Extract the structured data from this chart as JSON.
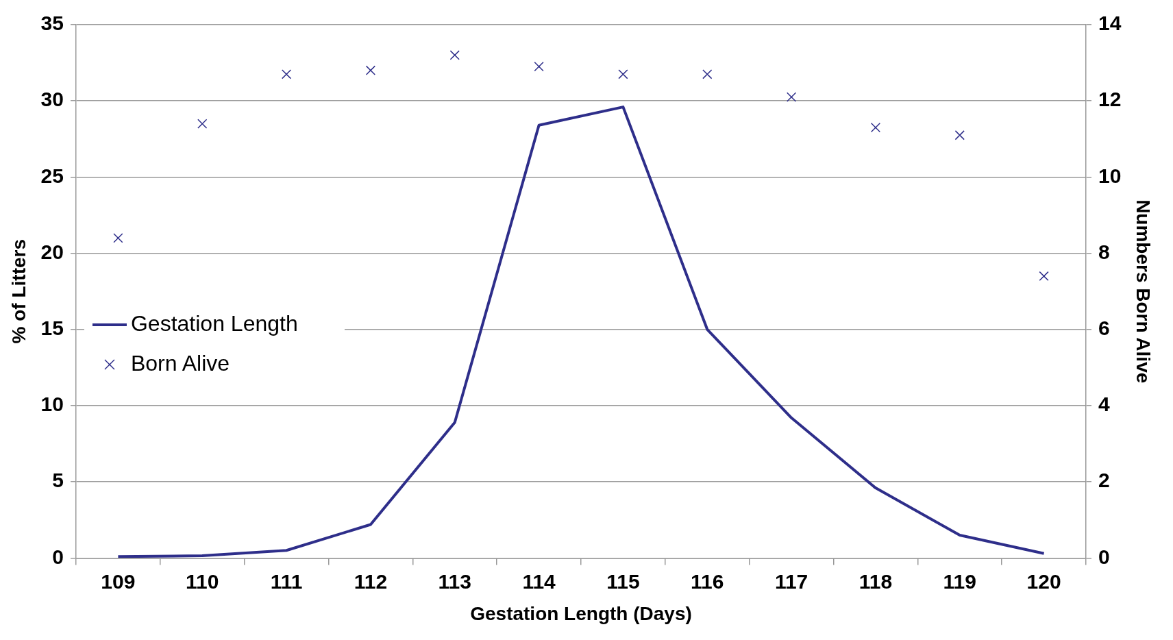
{
  "chart_data": {
    "type": "line",
    "xlabel": "Gestation Length (Days)",
    "ylabel": "% of Litters",
    "y2label": "Numbers Born Alive",
    "categories": [
      "109",
      "110",
      "111",
      "112",
      "113",
      "114",
      "115",
      "116",
      "117",
      "118",
      "119",
      "120"
    ],
    "series": [
      {
        "name": "Gestation Length",
        "color": "#2e2e8a",
        "marker": "none",
        "line_style": "solid",
        "values": [
          0.1,
          0.15,
          0.5,
          2.2,
          8.9,
          28.4,
          29.6,
          15,
          9.2,
          4.6,
          1.5,
          0.3
        ]
      },
      {
        "name": "Born Alive",
        "type": "scatter",
        "color": "#2e2e8a",
        "marker": "cross",
        "axis": "y2",
        "values": [
          8.4,
          11.4,
          12.7,
          12.8,
          13.2,
          12.9,
          12.7,
          12.7,
          12.1,
          11.3,
          11.1,
          7.4
        ]
      }
    ],
    "ylim": [
      0,
      35
    ],
    "yticks": [
      0,
      5,
      10,
      15,
      20,
      25,
      30,
      35
    ],
    "y2lim": [
      0,
      14
    ],
    "y2ticks": [
      0,
      2,
      4,
      6,
      8,
      10,
      12,
      14
    ],
    "grid": "y",
    "legend": "left"
  }
}
